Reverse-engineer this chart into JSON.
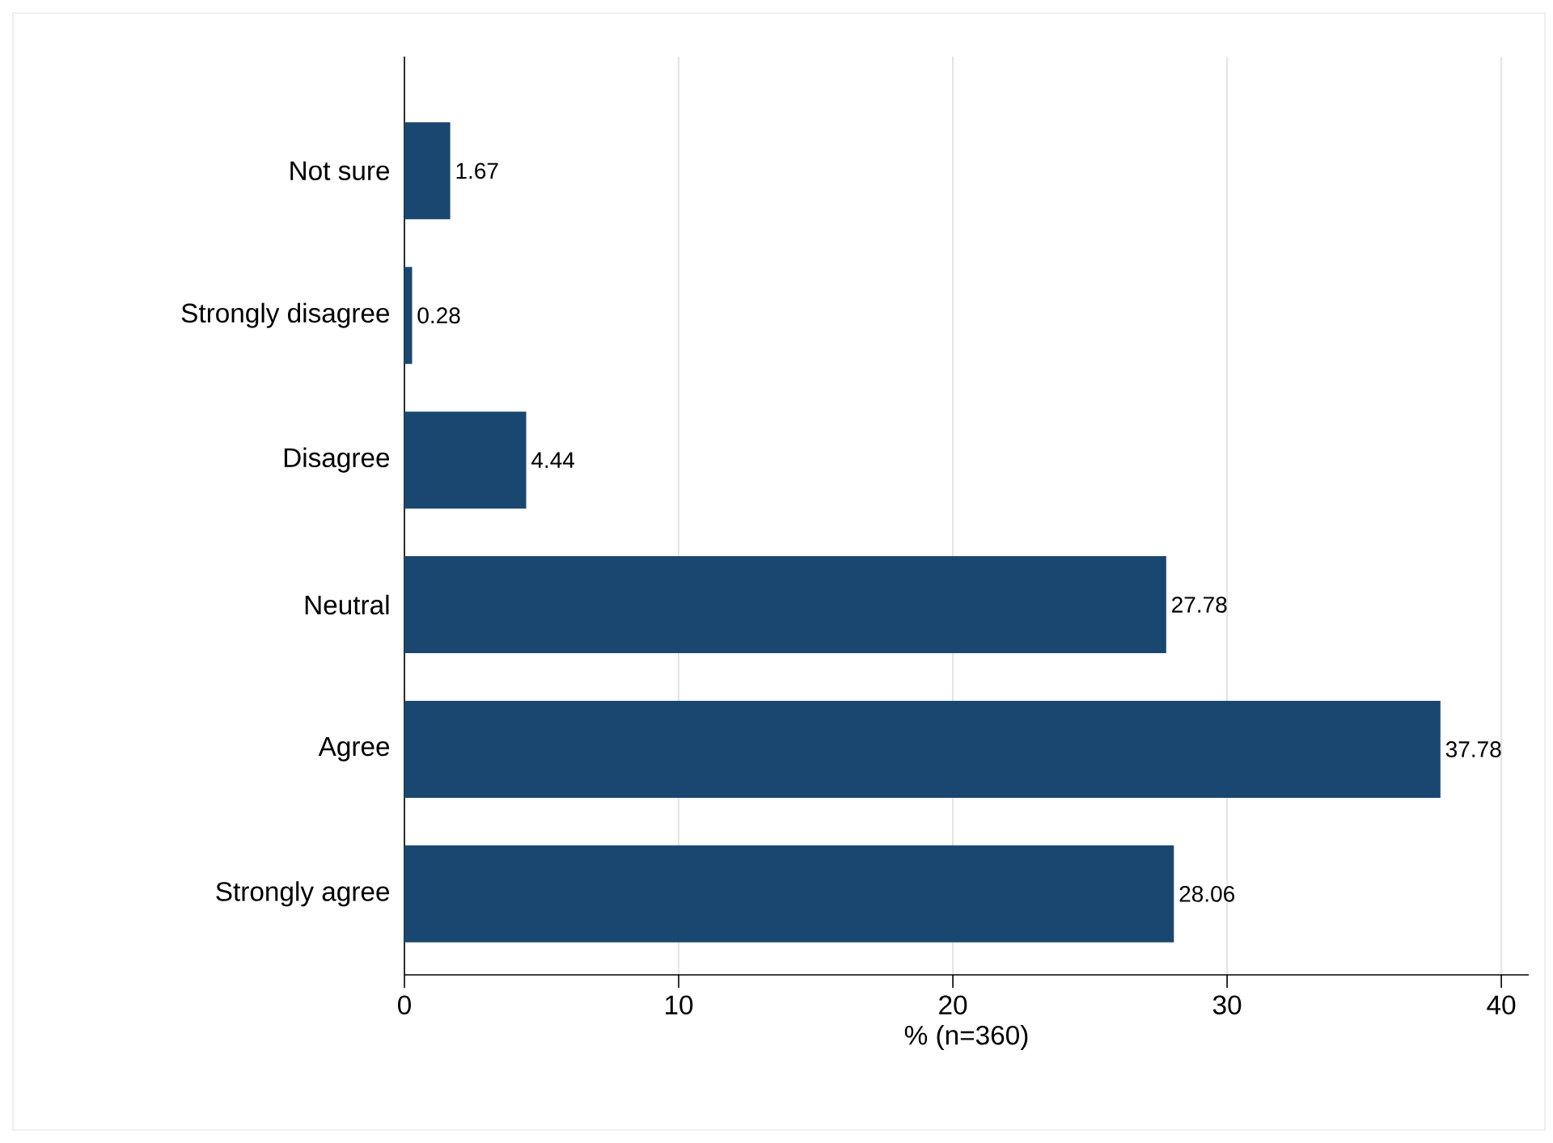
{
  "chart_data": {
    "type": "bar",
    "orientation": "horizontal",
    "xlabel": "% (n=360)",
    "categories": [
      "Not sure",
      "Strongly disagree",
      "Disagree",
      "Neutral",
      "Agree",
      "Strongly agree"
    ],
    "values": [
      1.67,
      0.28,
      4.44,
      27.78,
      37.78,
      28.06
    ],
    "color": "#1a476f",
    "xlim": [
      0,
      41
    ],
    "xticks": [
      0,
      10,
      20,
      30,
      40
    ],
    "grid": "x",
    "data_labels": true
  }
}
